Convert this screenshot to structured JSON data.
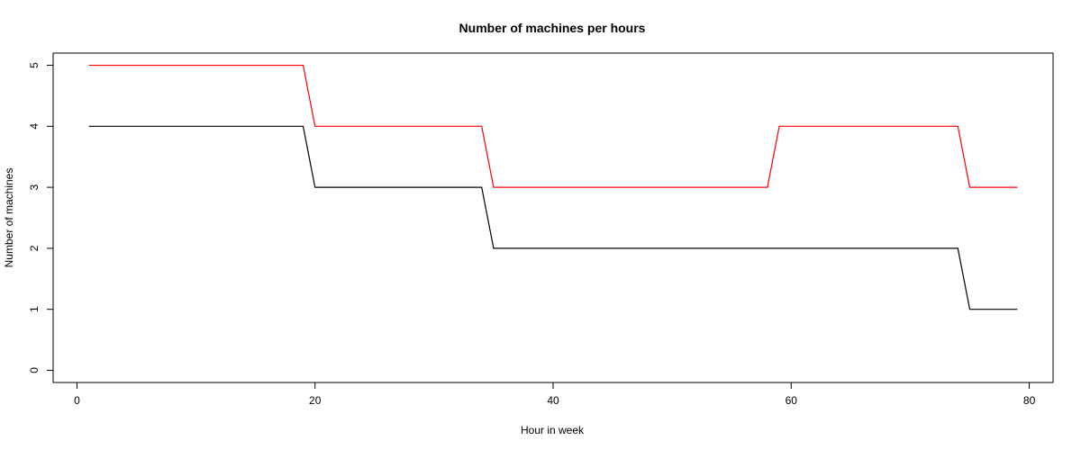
{
  "chart_data": {
    "type": "line",
    "title": "Number of machines per hours",
    "xlabel": "Hour in week",
    "ylabel": "Number of machines",
    "xlim": [
      -2,
      82
    ],
    "ylim": [
      -0.2,
      5.2
    ],
    "xticks": [
      0,
      20,
      40,
      60,
      80
    ],
    "yticks": [
      0,
      1,
      2,
      3,
      4,
      5
    ],
    "grid": false,
    "legend": "none",
    "series": [
      {
        "color": "#ff0000",
        "x": [
          1,
          19,
          20,
          34,
          35,
          58,
          59,
          74,
          75,
          79
        ],
        "y": [
          5,
          5,
          4,
          4,
          3,
          3,
          4,
          4,
          3,
          3
        ]
      },
      {
        "color": "#000000",
        "x": [
          1,
          19,
          20,
          34,
          35,
          74,
          75,
          79
        ],
        "y": [
          4,
          4,
          3,
          3,
          2,
          2,
          1,
          1
        ]
      }
    ]
  }
}
